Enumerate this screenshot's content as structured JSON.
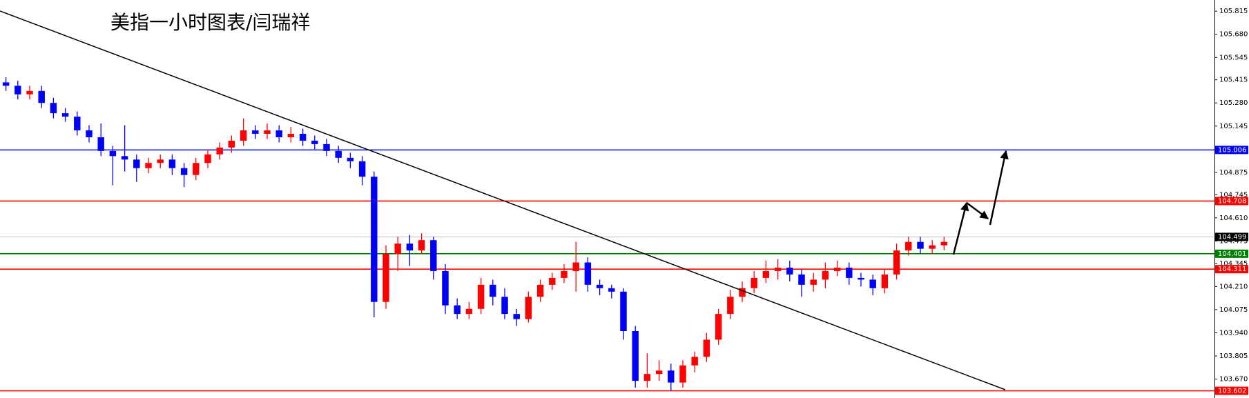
{
  "chart_data": {
    "type": "candlestick",
    "title": "美指一小时图表/闫瑞祥",
    "up_color": "#ff0000",
    "down_color": "#0000ff",
    "ylim": [
      103.56,
      105.88
    ],
    "yticks": [
      105.815,
      {
        "value": 105.68,
        "label": "105.680"
      },
      105.545,
      105.415,
      {
        "value": 105.28,
        "label": "105.280"
      },
      105.145,
      104.875,
      104.745,
      {
        "value": 104.61,
        "label": "104.610"
      },
      104.475,
      104.345,
      {
        "value": 104.21,
        "label": "104.210"
      },
      104.075,
      {
        "value": 103.94,
        "label": "103.940"
      },
      103.805,
      {
        "value": 103.67,
        "label": "103.670"
      }
    ],
    "levels": [
      {
        "value": 105.006,
        "color": "#0000ff"
      },
      {
        "value": 104.708,
        "color": "#ff0000"
      },
      {
        "value": 104.499,
        "color": "#c0c0c0"
      },
      {
        "value": 104.401,
        "color": "#008000"
      },
      {
        "value": 104.311,
        "color": "#ff0000"
      },
      {
        "value": 103.602,
        "color": "#ff0000"
      }
    ],
    "open": [
      105.4,
      105.38,
      105.33,
      105.35,
      105.28,
      105.22,
      105.2,
      105.12,
      105.08,
      105.0,
      104.97,
      104.95,
      104.9,
      104.93,
      104.95,
      104.9,
      104.86,
      104.93,
      104.98,
      105.02,
      105.06,
      105.12,
      105.1,
      105.12,
      105.08,
      105.1,
      105.06,
      105.04,
      105.0,
      104.96,
      104.94,
      104.85,
      104.12,
      104.4,
      104.46,
      104.42,
      104.48,
      104.3,
      104.1,
      104.05,
      104.08,
      104.22,
      104.15,
      104.05,
      104.02,
      104.15,
      104.22,
      104.26,
      104.3,
      104.35,
      104.22,
      104.2,
      104.18,
      103.95,
      103.66,
      103.7,
      103.72,
      103.65,
      103.75,
      103.8,
      103.9,
      104.05,
      104.15,
      104.2,
      104.26,
      104.3,
      104.32,
      104.28,
      104.22,
      104.25,
      104.3,
      104.32,
      104.26,
      104.25,
      104.2,
      104.28,
      104.42,
      104.47,
      104.43,
      104.45
    ],
    "high": [
      105.43,
      105.41,
      105.38,
      105.38,
      105.31,
      105.25,
      105.23,
      105.15,
      105.16,
      105.03,
      105.15,
      104.98,
      104.96,
      104.98,
      104.98,
      104.93,
      104.96,
      105.01,
      105.05,
      105.09,
      105.19,
      105.15,
      105.16,
      105.15,
      105.14,
      105.13,
      105.09,
      105.07,
      105.03,
      104.99,
      104.97,
      104.88,
      104.45,
      104.5,
      104.51,
      104.52,
      104.5,
      104.34,
      104.14,
      104.12,
      104.26,
      104.25,
      104.2,
      104.08,
      104.18,
      104.25,
      104.29,
      104.34,
      104.47,
      104.38,
      104.25,
      104.22,
      104.2,
      103.98,
      103.82,
      103.78,
      103.76,
      103.78,
      103.83,
      103.94,
      104.08,
      104.19,
      104.24,
      104.3,
      104.36,
      104.37,
      104.36,
      104.31,
      104.29,
      104.35,
      104.36,
      104.35,
      104.29,
      104.28,
      104.31,
      104.46,
      104.5,
      104.5,
      104.48,
      104.5
    ],
    "low": [
      105.35,
      105.3,
      105.3,
      105.25,
      105.19,
      105.17,
      105.09,
      105.05,
      104.97,
      104.8,
      104.88,
      104.82,
      104.87,
      104.9,
      104.86,
      104.79,
      104.83,
      104.9,
      104.95,
      104.99,
      105.03,
      105.07,
      105.07,
      105.05,
      105.05,
      105.03,
      105.01,
      104.97,
      104.93,
      104.9,
      104.8,
      104.03,
      104.08,
      104.3,
      104.33,
      104.4,
      104.25,
      104.05,
      104.02,
      104.02,
      104.05,
      104.1,
      104.02,
      103.98,
      104.0,
      104.12,
      104.19,
      104.23,
      104.18,
      104.18,
      104.16,
      104.14,
      103.9,
      103.62,
      103.62,
      103.66,
      103.6,
      103.62,
      103.71,
      103.77,
      103.87,
      104.02,
      104.12,
      104.17,
      104.23,
      104.25,
      104.24,
      104.15,
      104.18,
      104.2,
      104.27,
      104.22,
      104.21,
      104.16,
      104.17,
      104.25,
      104.39,
      104.4,
      104.4,
      104.42
    ],
    "close": [
      105.38,
      105.33,
      105.35,
      105.28,
      105.22,
      105.2,
      105.12,
      105.08,
      105.0,
      104.97,
      104.95,
      104.9,
      104.93,
      104.95,
      104.9,
      104.86,
      104.93,
      104.98,
      105.02,
      105.06,
      105.12,
      105.1,
      105.12,
      105.08,
      105.1,
      105.06,
      105.04,
      105.0,
      104.96,
      104.94,
      104.85,
      104.12,
      104.4,
      104.46,
      104.42,
      104.48,
      104.3,
      104.1,
      104.05,
      104.08,
      104.22,
      104.15,
      104.05,
      104.02,
      104.15,
      104.22,
      104.26,
      104.3,
      104.35,
      104.22,
      104.2,
      104.18,
      103.95,
      103.66,
      103.7,
      103.72,
      103.65,
      103.75,
      103.8,
      103.9,
      104.05,
      104.15,
      104.2,
      104.26,
      104.3,
      104.32,
      104.28,
      104.22,
      104.25,
      104.3,
      104.32,
      104.26,
      104.25,
      104.2,
      104.28,
      104.42,
      104.47,
      104.43,
      104.45,
      104.47
    ]
  }
}
